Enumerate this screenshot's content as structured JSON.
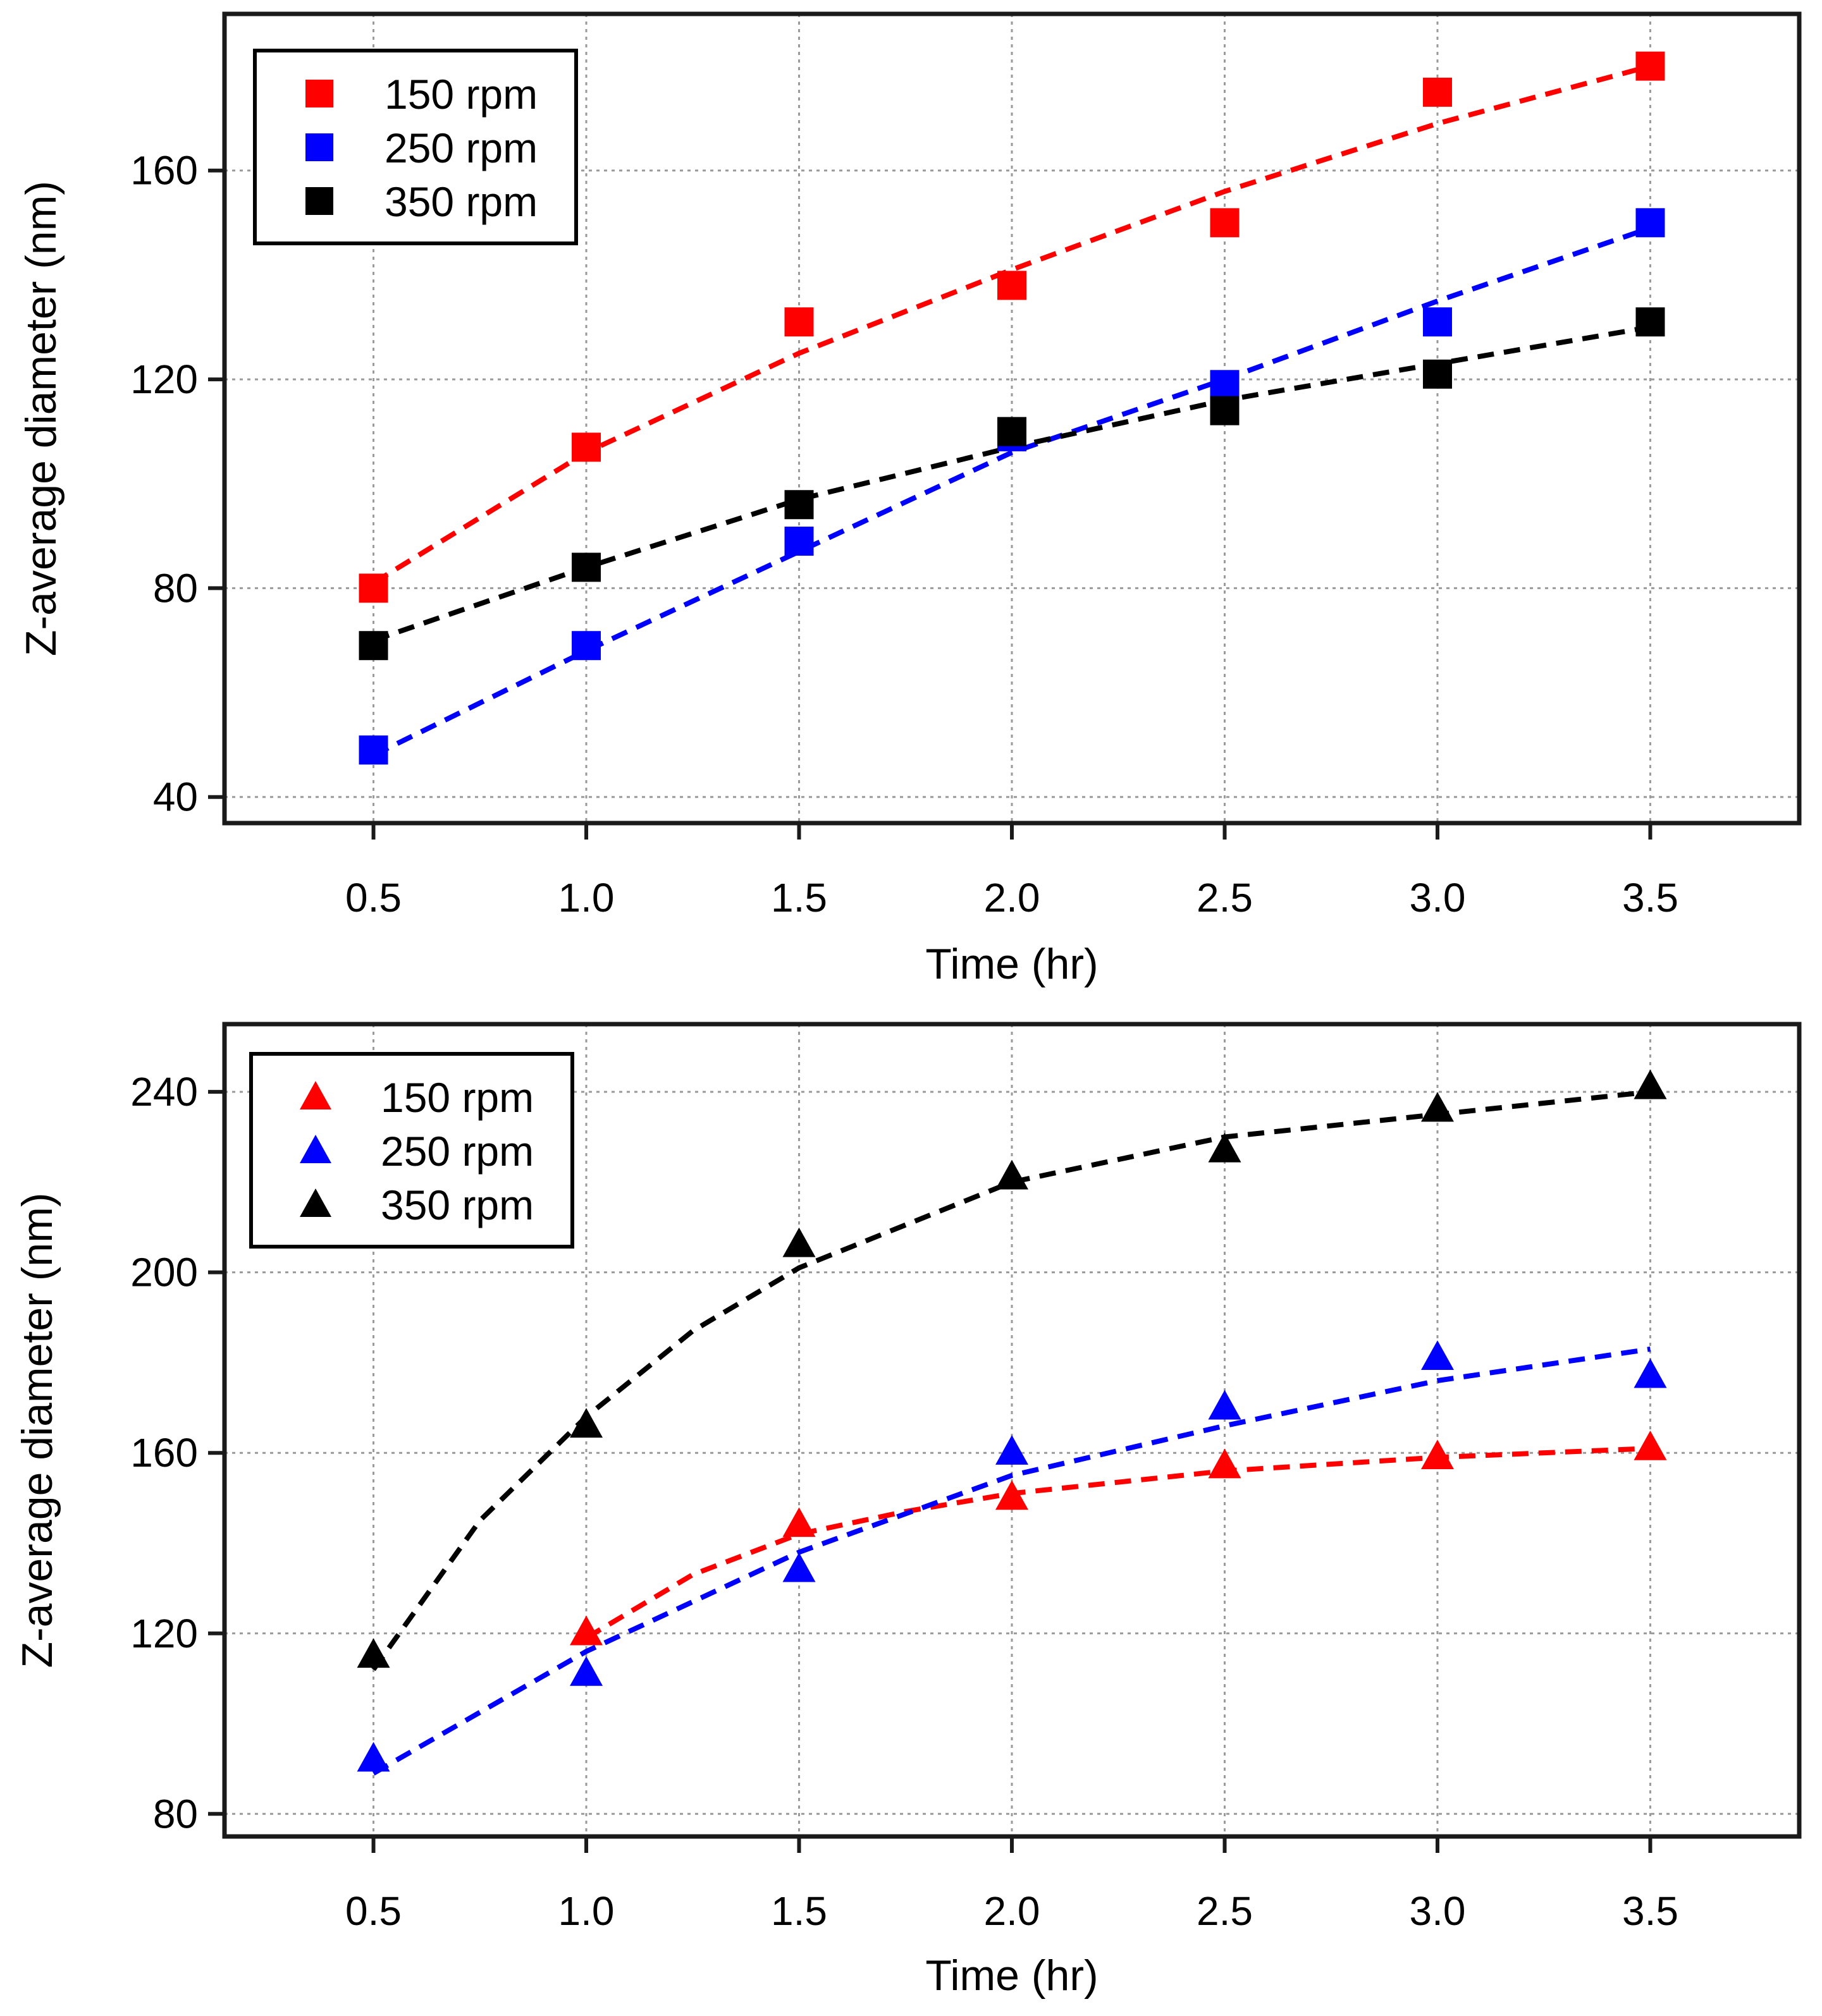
{
  "chart_data": [
    {
      "type": "scatter",
      "marker": "square",
      "title": "",
      "xlabel": "Time (hr)",
      "ylabel": "Z-average diameter (nm)",
      "xlim": [
        0.15,
        3.85
      ],
      "ylim": [
        35,
        190
      ],
      "xticks": [
        0.5,
        1.0,
        1.5,
        2.0,
        2.5,
        3.0,
        3.5
      ],
      "xtick_labels": [
        "0.5",
        "1.0",
        "1.5",
        "2.0",
        "2.5",
        "3.0",
        "3.5"
      ],
      "yticks": [
        40,
        80,
        120,
        160
      ],
      "ytick_labels": [
        "40",
        "80",
        "120",
        "160"
      ],
      "grid": true,
      "legend_position": "top-left",
      "x": [
        0.5,
        1.0,
        1.5,
        2.0,
        2.5,
        3.0,
        3.5
      ],
      "series": [
        {
          "name": "150 rpm",
          "color": "#ff0000",
          "values": [
            80,
            107,
            131,
            138,
            150,
            175,
            180
          ],
          "fit": [
            81,
            106,
            125,
            141,
            156,
            169,
            180
          ]
        },
        {
          "name": "250 rpm",
          "color": "#0000ff",
          "values": [
            49,
            69,
            89,
            109,
            119,
            131,
            150
          ],
          "fit": [
            48,
            68,
            87,
            106,
            120,
            135,
            149
          ]
        },
        {
          "name": "350 rpm",
          "color": "#000000",
          "values": [
            69,
            84,
            96,
            110,
            114,
            121,
            131
          ],
          "fit": [
            70,
            84,
            97,
            107,
            116,
            123,
            130
          ]
        }
      ]
    },
    {
      "type": "scatter",
      "marker": "triangle",
      "title": "",
      "xlabel": "Time (hr)",
      "ylabel": "Z-average diameter (nm)",
      "xlim": [
        0.15,
        3.85
      ],
      "ylim": [
        75,
        255
      ],
      "xticks": [
        0.5,
        1.0,
        1.5,
        2.0,
        2.5,
        3.0,
        3.5
      ],
      "xtick_labels": [
        "0.5",
        "1.0",
        "1.5",
        "2.0",
        "2.5",
        "3.0",
        "3.5"
      ],
      "yticks": [
        80,
        120,
        160,
        200,
        240
      ],
      "ytick_labels": [
        "80",
        "120",
        "160",
        "200",
        "240"
      ],
      "grid": true,
      "legend_position": "top-left",
      "x": [
        0.5,
        1.0,
        1.5,
        2.0,
        2.5,
        3.0,
        3.5
      ],
      "series": [
        {
          "name": "150 rpm",
          "color": "#ff0000",
          "x": [
            1.0,
            1.5,
            2.0,
            2.5,
            3.0,
            3.5
          ],
          "values": [
            120,
            144,
            150,
            157,
            159,
            161
          ],
          "fit_x": [
            1.0,
            1.25,
            1.5,
            1.75,
            2.0,
            2.5,
            3.0,
            3.5
          ],
          "fit": [
            119,
            133,
            142,
            147,
            151,
            156,
            159,
            161
          ]
        },
        {
          "name": "250 rpm",
          "color": "#0000ff",
          "x": [
            0.5,
            1.0,
            1.5,
            2.0,
            2.5,
            3.0,
            3.5
          ],
          "values": [
            92,
            111,
            134,
            160,
            170,
            181,
            177
          ],
          "fit_x": [
            0.5,
            1.0,
            1.5,
            2.0,
            2.5,
            3.0,
            3.5
          ],
          "fit": [
            89,
            116,
            138,
            155,
            166,
            176,
            183
          ]
        },
        {
          "name": "350 rpm",
          "color": "#000000",
          "x": [
            0.5,
            1.0,
            1.5,
            2.0,
            2.5,
            3.0,
            3.5
          ],
          "values": [
            115,
            166,
            206,
            221,
            227,
            236,
            241
          ],
          "fit_x": [
            0.5,
            0.75,
            1.0,
            1.25,
            1.5,
            2.0,
            2.5,
            3.0,
            3.5
          ],
          "fit": [
            112,
            145,
            168,
            187,
            201,
            220,
            230,
            235,
            240
          ]
        }
      ]
    }
  ]
}
